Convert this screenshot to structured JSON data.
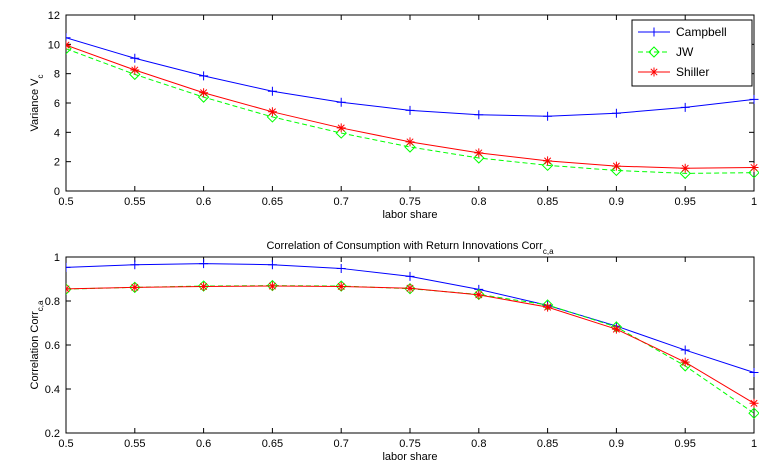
{
  "chart_data": [
    {
      "type": "line",
      "title": "",
      "xlabel": "labor share",
      "ylabel": "Variance V",
      "ylabel_sub": "c",
      "xlim": [
        0.5,
        1
      ],
      "ylim": [
        0,
        12
      ],
      "xticks": [
        "0.5",
        "0.55",
        "0.6",
        "0.65",
        "0.7",
        "0.75",
        "0.8",
        "0.85",
        "0.9",
        "0.95",
        "1"
      ],
      "yticks": [
        "0",
        "2",
        "4",
        "6",
        "8",
        "10",
        "12"
      ],
      "grid": false,
      "legend": "top-right",
      "x": [
        0.5,
        0.55,
        0.6,
        0.65,
        0.7,
        0.75,
        0.8,
        0.85,
        0.9,
        0.95,
        1.0
      ],
      "series": [
        {
          "name": "Campbell",
          "color": "#0000ff",
          "marker": "plus",
          "dash": "solid",
          "values": [
            10.45,
            9.05,
            7.85,
            6.8,
            6.05,
            5.5,
            5.2,
            5.1,
            5.3,
            5.7,
            6.25
          ]
        },
        {
          "name": "JW",
          "color": "#00ff00",
          "marker": "diamond",
          "dash": "dashed",
          "values": [
            9.7,
            7.95,
            6.4,
            5.05,
            3.95,
            3.0,
            2.25,
            1.75,
            1.4,
            1.2,
            1.25
          ]
        },
        {
          "name": "Shiller",
          "color": "#ff0000",
          "marker": "star",
          "dash": "solid",
          "values": [
            9.95,
            8.25,
            6.7,
            5.4,
            4.3,
            3.35,
            2.6,
            2.05,
            1.7,
            1.55,
            1.6
          ]
        }
      ]
    },
    {
      "type": "line",
      "title": "Correlation of Consumption with Return Innovations Corr",
      "title_sub": "c,a",
      "xlabel": "labor share",
      "ylabel": "Correlation Corr",
      "ylabel_sub": "c,a",
      "xlim": [
        0.5,
        1
      ],
      "ylim": [
        0.2,
        1
      ],
      "xticks": [
        "0.5",
        "0.55",
        "0.6",
        "0.65",
        "0.7",
        "0.75",
        "0.8",
        "0.85",
        "0.9",
        "0.95",
        "1"
      ],
      "yticks": [
        "0.2",
        "0.4",
        "0.6",
        "0.8",
        "1"
      ],
      "grid": false,
      "x": [
        0.5,
        0.55,
        0.6,
        0.65,
        0.7,
        0.75,
        0.8,
        0.85,
        0.9,
        0.95,
        1.0
      ],
      "series": [
        {
          "name": "Campbell",
          "color": "#0000ff",
          "marker": "plus",
          "dash": "solid",
          "values": [
            0.953,
            0.965,
            0.97,
            0.965,
            0.948,
            0.912,
            0.853,
            0.78,
            0.686,
            0.577,
            0.475
          ]
        },
        {
          "name": "JW",
          "color": "#00ff00",
          "marker": "diamond",
          "dash": "dashed",
          "values": [
            0.854,
            0.862,
            0.868,
            0.87,
            0.868,
            0.856,
            0.83,
            0.782,
            0.682,
            0.505,
            0.29
          ]
        },
        {
          "name": "Shiller",
          "color": "#ff0000",
          "marker": "star",
          "dash": "solid",
          "values": [
            0.855,
            0.862,
            0.866,
            0.868,
            0.866,
            0.858,
            0.828,
            0.772,
            0.672,
            0.522,
            0.335
          ]
        }
      ]
    }
  ]
}
